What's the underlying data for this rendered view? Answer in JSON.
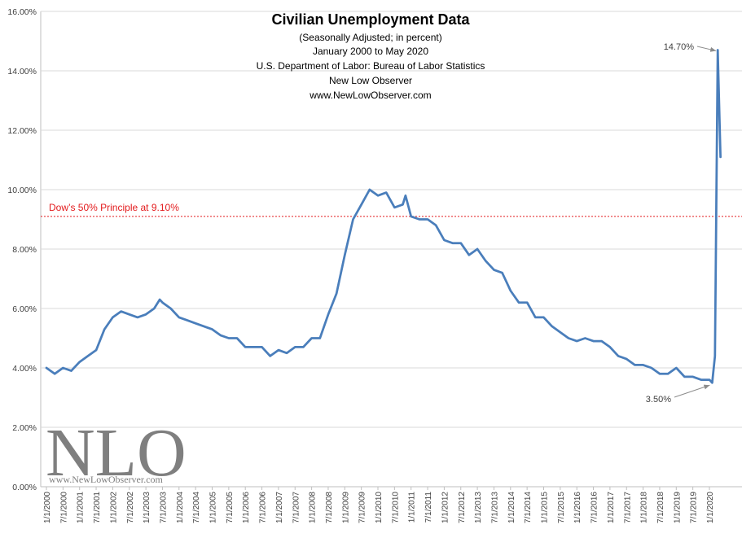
{
  "chart_data": {
    "type": "line",
    "title": "Civilian Unemployment Data",
    "subtitle_lines": [
      "(Seasonally Adjusted; in percent)",
      "January 2000  to May 2020",
      "U.S. Department of Labor: Bureau of Labor Statistics",
      "New Low Observer",
      "www.NewLowObserver.com"
    ],
    "ylim": [
      0,
      16
    ],
    "y_ticks": [
      "0.00%",
      "2.00%",
      "4.00%",
      "6.00%",
      "8.00%",
      "10.00%",
      "12.00%",
      "14.00%",
      "16.00%"
    ],
    "x_ticks": [
      "1/1/2000",
      "7/1/2000",
      "1/1/2001",
      "7/1/2001",
      "1/1/2002",
      "7/1/2002",
      "1/1/2003",
      "7/1/2003",
      "1/1/2004",
      "7/1/2004",
      "1/1/2005",
      "7/1/2005",
      "1/1/2006",
      "7/1/2006",
      "1/1/2007",
      "7/1/2007",
      "1/1/2008",
      "7/1/2008",
      "1/1/2009",
      "7/1/2009",
      "1/1/2010",
      "7/1/2010",
      "1/1/2011",
      "7/1/2011",
      "1/1/2012",
      "7/1/2012",
      "1/1/2013",
      "7/1/2013",
      "1/1/2014",
      "7/1/2014",
      "1/1/2015",
      "7/1/2015",
      "1/1/2016",
      "7/1/2016",
      "1/1/2017",
      "7/1/2017",
      "1/1/2018",
      "7/1/2018",
      "1/1/2019",
      "7/1/2019",
      "1/1/2020"
    ],
    "series": [
      {
        "x": [
          "2000-01",
          "2000-04",
          "2000-07",
          "2000-10",
          "2001-01",
          "2001-04",
          "2001-07",
          "2001-10",
          "2002-01",
          "2002-04",
          "2002-07",
          "2002-10",
          "2003-01",
          "2003-04",
          "2003-06",
          "2003-07",
          "2003-10",
          "2004-01",
          "2004-04",
          "2004-07",
          "2004-10",
          "2005-01",
          "2005-04",
          "2005-07",
          "2005-10",
          "2006-01",
          "2006-04",
          "2006-07",
          "2006-10",
          "2007-01",
          "2007-04",
          "2007-07",
          "2007-10",
          "2008-01",
          "2008-04",
          "2008-07",
          "2008-10",
          "2009-01",
          "2009-04",
          "2009-07",
          "2009-10",
          "2010-01",
          "2010-04",
          "2010-07",
          "2010-10",
          "2010-11",
          "2011-01",
          "2011-04",
          "2011-07",
          "2011-10",
          "2012-01",
          "2012-04",
          "2012-07",
          "2012-10",
          "2013-01",
          "2013-04",
          "2013-07",
          "2013-10",
          "2014-01",
          "2014-04",
          "2014-07",
          "2014-10",
          "2015-01",
          "2015-04",
          "2015-07",
          "2015-10",
          "2016-01",
          "2016-04",
          "2016-07",
          "2016-10",
          "2017-01",
          "2017-04",
          "2017-07",
          "2017-10",
          "2018-01",
          "2018-04",
          "2018-07",
          "2018-10",
          "2019-01",
          "2019-04",
          "2019-07",
          "2019-10",
          "2020-01",
          "2020-02",
          "2020-03",
          "2020-04",
          "2020-05"
        ],
        "values": [
          4.0,
          3.8,
          4.0,
          3.9,
          4.2,
          4.4,
          4.6,
          5.3,
          5.7,
          5.9,
          5.8,
          5.7,
          5.8,
          6.0,
          6.3,
          6.2,
          6.0,
          5.7,
          5.6,
          5.5,
          5.4,
          5.3,
          5.1,
          5.0,
          5.0,
          4.7,
          4.7,
          4.7,
          4.4,
          4.6,
          4.5,
          4.7,
          4.7,
          5.0,
          5.0,
          5.8,
          6.5,
          7.8,
          9.0,
          9.5,
          10.0,
          9.8,
          9.9,
          9.4,
          9.5,
          9.8,
          9.1,
          9.0,
          9.0,
          8.8,
          8.3,
          8.2,
          8.2,
          7.8,
          8.0,
          7.6,
          7.3,
          7.2,
          6.6,
          6.2,
          6.2,
          5.7,
          5.7,
          5.4,
          5.2,
          5.0,
          4.9,
          5.0,
          4.9,
          4.9,
          4.7,
          4.4,
          4.3,
          4.1,
          4.1,
          4.0,
          3.8,
          3.8,
          4.0,
          3.7,
          3.7,
          3.6,
          3.6,
          3.5,
          4.4,
          14.7,
          11.1
        ]
      }
    ],
    "reference_line": {
      "value": 9.1,
      "label": "Dow’s 50% Principle at 9.10%"
    },
    "annotations": [
      {
        "text": "14.70%",
        "x": "2020-04",
        "y": 14.7
      },
      {
        "text": "3.50%",
        "x": "2020-02",
        "y": 3.5
      }
    ],
    "colors": {
      "line": "#4a7ebb",
      "reference": "#e31a1c",
      "grid": "#d9d9d9",
      "watermark": "#7f7f7f"
    }
  },
  "watermark": {
    "big": "NLO",
    "small": "www.NewLowObserver.com"
  }
}
